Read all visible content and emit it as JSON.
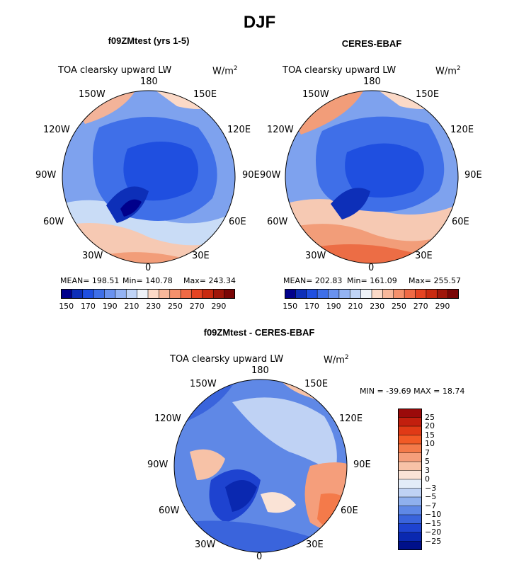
{
  "page": {
    "title": "DJF"
  },
  "panels": [
    {
      "title": "f09ZMtest (yrs 1-5)",
      "variable": "TOA clearsky upward LW",
      "units": "W/m",
      "units_exp": "2",
      "lon_labels": {
        "top": "180",
        "bottom": "0",
        "left": "90W",
        "right": "90E",
        "upper_left": "150W",
        "upper_right": "150E",
        "mid_upper_left": "120W",
        "mid_upper_right": "120E",
        "mid_lower_left": "60W",
        "mid_lower_right": "60E",
        "lower_left": "30W",
        "lower_right": "30E"
      },
      "stats": {
        "mean": "MEAN= 198.51",
        "min": "Min= 140.78",
        "max": "Max= 243.34"
      },
      "colorbar": {
        "colors": [
          "#00008b",
          "#0d2fb8",
          "#1f4fe0",
          "#3f6fe8",
          "#6a92ef",
          "#94b3f3",
          "#c0d4f7",
          "#eef2f8",
          "#fbd9c7",
          "#f8b89b",
          "#f5916c",
          "#f06a45",
          "#e64422",
          "#c92a10",
          "#9f160a",
          "#7a0606"
        ],
        "tick_labels": [
          "150",
          "170",
          "190",
          "210",
          "230",
          "250",
          "270",
          "290"
        ]
      }
    },
    {
      "title": "CERES-EBAF",
      "variable": "TOA clearsky upward LW",
      "units": "W/m",
      "units_exp": "2",
      "lon_labels": {
        "top": "180",
        "bottom": "0",
        "left": "90W",
        "right": "90E",
        "upper_left": "150W",
        "upper_right": "150E",
        "mid_upper_left": "120W",
        "mid_upper_right": "120E",
        "mid_lower_left": "60W",
        "mid_lower_right": "60E",
        "lower_left": "30W",
        "lower_right": "30E"
      },
      "stats": {
        "mean": "MEAN= 202.83",
        "min": "Min= 161.09",
        "max": "Max= 255.57"
      },
      "colorbar": {
        "colors": [
          "#00008b",
          "#0d2fb8",
          "#1f4fe0",
          "#3f6fe8",
          "#6a92ef",
          "#94b3f3",
          "#c0d4f7",
          "#eef2f8",
          "#fbd9c7",
          "#f8b89b",
          "#f5916c",
          "#f06a45",
          "#e64422",
          "#c92a10",
          "#9f160a",
          "#7a0606"
        ],
        "tick_labels": [
          "150",
          "170",
          "190",
          "210",
          "230",
          "250",
          "270",
          "290"
        ]
      }
    },
    {
      "title": "f09ZMtest - CERES-EBAF",
      "variable": "TOA clearsky upward LW",
      "units": "W/m",
      "units_exp": "2",
      "lon_labels": {
        "top": "180",
        "bottom": "0",
        "left": "90W",
        "right": "90E",
        "upper_left": "150W",
        "upper_right": "150E",
        "mid_upper_left": "120W",
        "mid_upper_right": "120E",
        "mid_lower_left": "60W",
        "mid_lower_right": "60E",
        "lower_left": "30W",
        "lower_right": "30E"
      },
      "minmax": "MIN = -39.69 MAX =  18.74",
      "colorbar": {
        "colors_top_to_bottom": [
          "#9b0a0a",
          "#c21f0e",
          "#e03a16",
          "#f25a26",
          "#f47a4a",
          "#f59e7b",
          "#f7c2a7",
          "#fae3d6",
          "#e3ecf8",
          "#bfd2f4",
          "#8fb0ee",
          "#5f88e6",
          "#3a64dc",
          "#1e43d0",
          "#0a28b0",
          "#00108a"
        ],
        "tick_labels_top_to_bottom": [
          "25",
          "20",
          "15",
          "10",
          "7",
          "5",
          "3",
          "0",
          "−3",
          "−5",
          "−7",
          "−10",
          "−15",
          "−20",
          "−25"
        ]
      }
    }
  ],
  "chart_data": [
    {
      "type": "heatmap",
      "title": "f09ZMtest (yrs 1-5)",
      "variable": "TOA clearsky upward LW",
      "units": "W/m2",
      "projection": "north polar stereographic",
      "levels": [
        150,
        160,
        170,
        180,
        190,
        200,
        210,
        220,
        230,
        240,
        250,
        260,
        270,
        280,
        290
      ],
      "mean": 198.51,
      "min": 140.78,
      "max": 243.34
    },
    {
      "type": "heatmap",
      "title": "CERES-EBAF",
      "variable": "TOA clearsky upward LW",
      "units": "W/m2",
      "projection": "north polar stereographic",
      "levels": [
        150,
        160,
        170,
        180,
        190,
        200,
        210,
        220,
        230,
        240,
        250,
        260,
        270,
        280,
        290
      ],
      "mean": 202.83,
      "min": 161.09,
      "max": 255.57
    },
    {
      "type": "heatmap",
      "title": "f09ZMtest - CERES-EBAF",
      "variable": "TOA clearsky upward LW",
      "units": "W/m2",
      "projection": "north polar stereographic",
      "levels": [
        -25,
        -20,
        -15,
        -10,
        -7,
        -5,
        -3,
        0,
        3,
        5,
        7,
        10,
        15,
        20,
        25
      ],
      "min": -39.69,
      "max": 18.74
    }
  ]
}
